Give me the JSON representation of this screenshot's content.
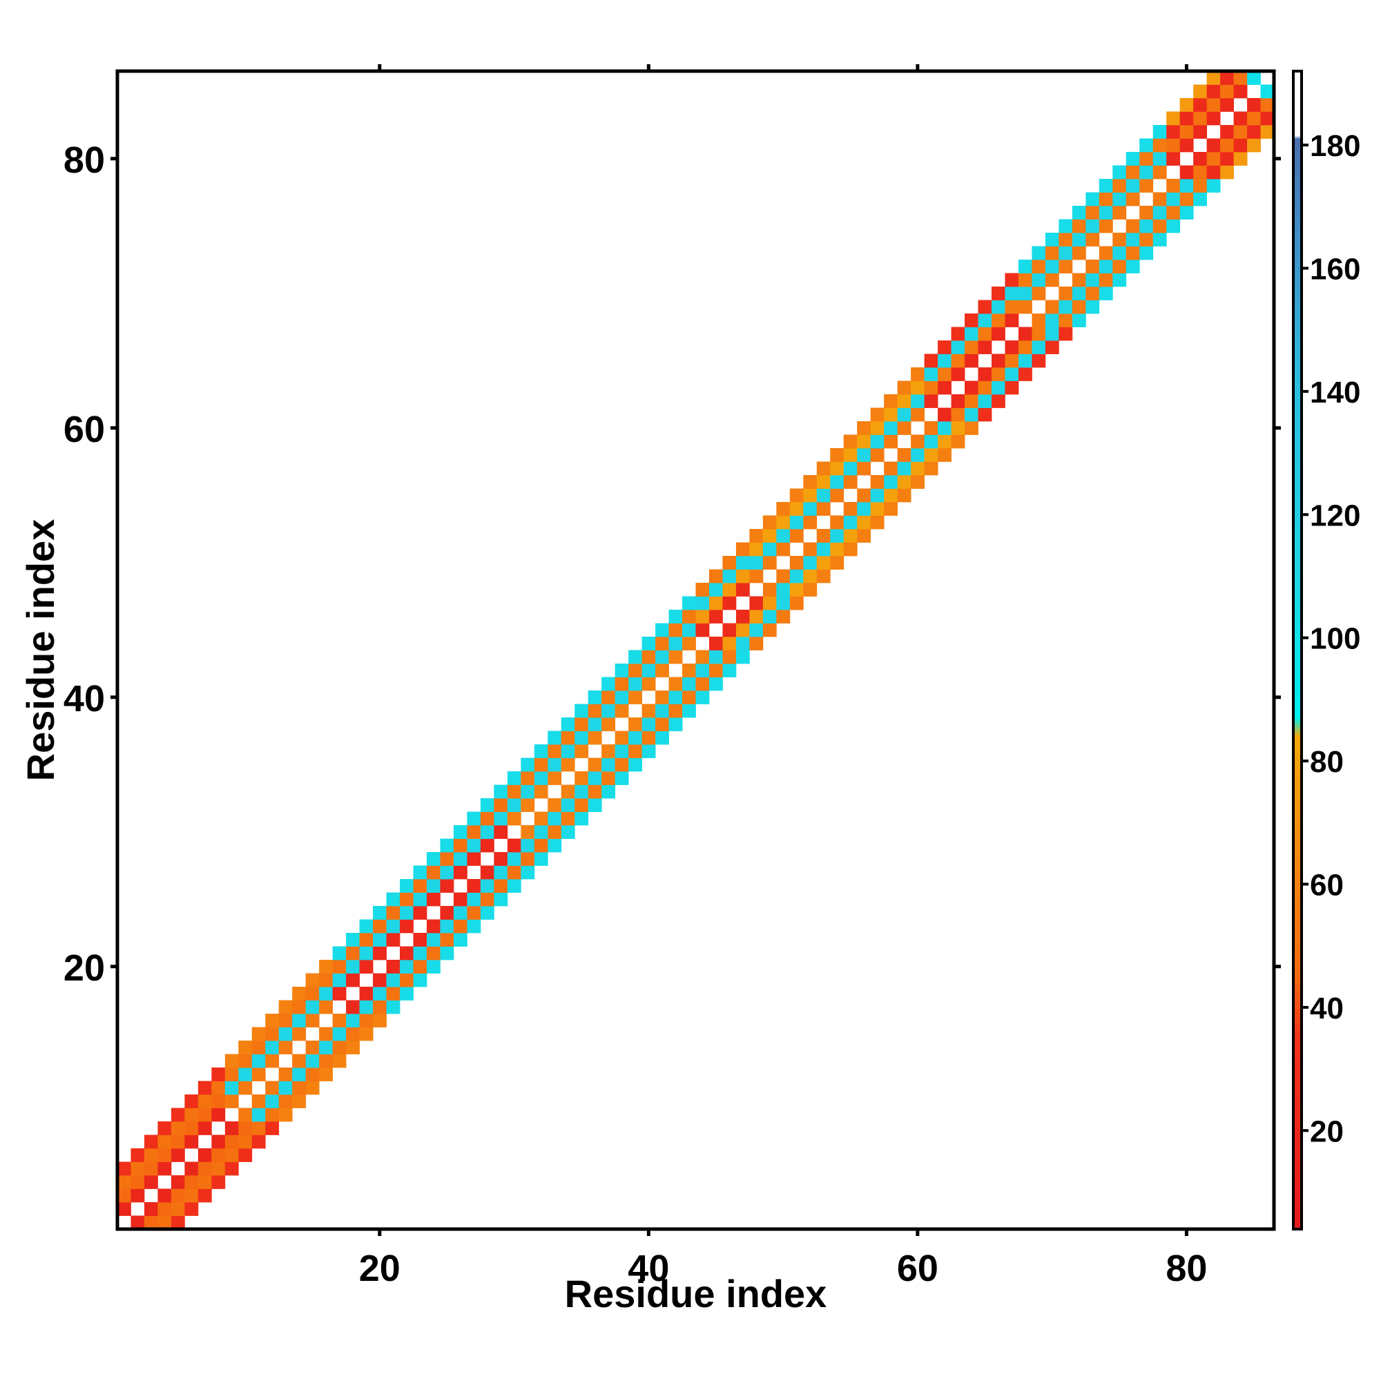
{
  "chart_data": {
    "type": "heatmap",
    "title": "",
    "xlabel": "Residue index",
    "ylabel": "Residue index",
    "xlim": [
      0.5,
      86.5
    ],
    "ylim": [
      0.5,
      86.5
    ],
    "x_ticks": [
      20,
      40,
      60,
      80
    ],
    "y_ticks": [
      20,
      40,
      60,
      80
    ],
    "x_tick_labels": [
      "20",
      "40",
      "60",
      "80"
    ],
    "y_tick_labels": [
      "20",
      "40",
      "60",
      "80"
    ],
    "grid": false,
    "colorbar": {
      "position": "right",
      "range": [
        4,
        192
      ],
      "ticks": [
        20,
        40,
        60,
        80,
        100,
        120,
        140,
        160,
        180
      ],
      "tick_labels": [
        "20",
        "40",
        "60",
        "80",
        "100",
        "120",
        "140",
        "160",
        "180"
      ],
      "stops": [
        {
          "value": 4,
          "color": "#e41a1c"
        },
        {
          "value": 35,
          "color": "#f2331a"
        },
        {
          "value": 45,
          "color": "#f56a10"
        },
        {
          "value": 65,
          "color": "#f58a10"
        },
        {
          "value": 84,
          "color": "#f5a70c"
        },
        {
          "value": 87,
          "color": "#00f0f0"
        },
        {
          "value": 110,
          "color": "#1fd6e6"
        },
        {
          "value": 140,
          "color": "#2bbfe0"
        },
        {
          "value": 165,
          "color": "#3f8fc8"
        },
        {
          "value": 181,
          "color": "#4a6fae"
        },
        {
          "value": 181.5,
          "color": "#ffffff"
        },
        {
          "value": 192,
          "color": "#ffffff"
        }
      ]
    },
    "description_of_values": "Cells lie on diagonals |i - j| = 1..4 (symmetric band). Values estimated from color.",
    "residues": 86,
    "base_values_by_offset": {
      "1": 24,
      "2": 52,
      "3": 102,
      "4": 58
    },
    "segments": [
      {
        "range": [
          1,
          8
        ],
        "offset_values": {
          "1": 20,
          "2": 45,
          "3": 50,
          "4": 30
        }
      },
      {
        "range": [
          9,
          16
        ],
        "offset_values": {
          "1": 55,
          "2": 110,
          "3": 52,
          "4": 60
        }
      },
      {
        "range": [
          17,
          29
        ],
        "offset_values": {
          "1": 22,
          "2": 110,
          "3": 50,
          "4": 105
        }
      },
      {
        "range": [
          30,
          43
        ],
        "offset_values": {
          "1": 60,
          "2": 110,
          "3": 55,
          "4": 105
        }
      },
      {
        "range": [
          44,
          47
        ],
        "offset_values": {
          "1": 25,
          "2": 75,
          "3": 110,
          "4": 55
        }
      },
      {
        "range": [
          48,
          60
        ],
        "offset_values": {
          "1": 55,
          "2": 110,
          "3": 80,
          "4": 58
        }
      },
      {
        "range": [
          61,
          67
        ],
        "offset_values": {
          "1": 22,
          "2": 55,
          "3": 110,
          "4": 30
        }
      },
      {
        "range": [
          68,
          78
        ],
        "offset_values": {
          "1": 55,
          "2": 110,
          "3": 55,
          "4": 105
        }
      },
      {
        "range": [
          79,
          84
        ],
        "offset_values": {
          "1": 22,
          "2": 50,
          "3": 25,
          "4": 75
        }
      },
      {
        "range": [
          85,
          86
        ],
        "offset_values": {
          "1": 100,
          "2": 55,
          "3": 75,
          "4": 100
        }
      }
    ]
  }
}
